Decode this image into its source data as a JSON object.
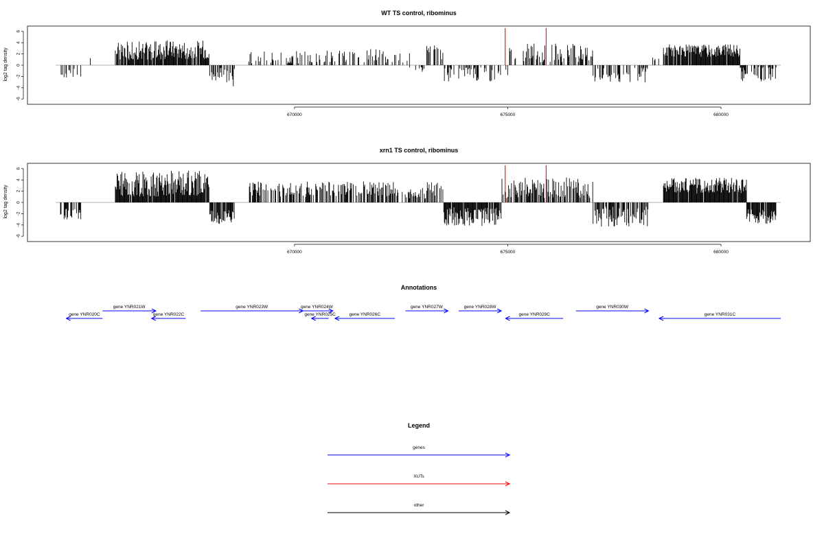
{
  "chart_data": [
    {
      "type": "bar",
      "title": "WT TS control, ribominus",
      "ylabel": "log2 tag density",
      "xlim": [
        664400,
        681400
      ],
      "ylim": [
        -6,
        6
      ],
      "yticks": [
        -6,
        -4,
        -2,
        0,
        2,
        4,
        6
      ],
      "xticks": [
        670000,
        675000,
        680000
      ],
      "xtick_labels": [
        "670000",
        "675000",
        "680000"
      ],
      "bar_color": "#000000",
      "marker_color": "#ff0000",
      "markers": [
        {
          "x": 674940,
          "value": 6.6
        },
        {
          "x": 675900,
          "value": 6.6
        }
      ],
      "segments": [
        {
          "start": 664500,
          "end": 665000,
          "mean": -1.5,
          "amp": 0.6,
          "density": 0.3
        },
        {
          "start": 665200,
          "end": 665300,
          "mean": 1.5,
          "amp": 0.3,
          "density": 0.3
        },
        {
          "start": 665800,
          "end": 667000,
          "mean": 2.6,
          "amp": 1.2,
          "density": 0.9
        },
        {
          "start": 667000,
          "end": 668000,
          "mean": 2.8,
          "amp": 1.2,
          "density": 0.9
        },
        {
          "start": 668000,
          "end": 668300,
          "mean": -1.8,
          "amp": 1.0,
          "density": 0.5
        },
        {
          "start": 668300,
          "end": 668600,
          "mean": -2.2,
          "amp": 1.2,
          "density": 0.4
        },
        {
          "start": 668900,
          "end": 670400,
          "mean": 1.5,
          "amp": 1.0,
          "density": 0.35
        },
        {
          "start": 670400,
          "end": 672700,
          "mean": 1.6,
          "amp": 0.9,
          "density": 0.3
        },
        {
          "start": 672700,
          "end": 673100,
          "mean": -0.8,
          "amp": 0.4,
          "density": 0.3
        },
        {
          "start": 673100,
          "end": 673500,
          "mean": 2.2,
          "amp": 1.0,
          "density": 0.5
        },
        {
          "start": 673500,
          "end": 675000,
          "mean": -1.5,
          "amp": 1.0,
          "density": 0.4
        },
        {
          "start": 675000,
          "end": 677000,
          "mean": 2.2,
          "amp": 1.2,
          "density": 0.4
        },
        {
          "start": 677000,
          "end": 678300,
          "mean": -1.8,
          "amp": 1.0,
          "density": 0.35
        },
        {
          "start": 678300,
          "end": 678650,
          "mean": 1.0,
          "amp": 0.3,
          "density": 0.2
        },
        {
          "start": 678650,
          "end": 680450,
          "mean": 2.6,
          "amp": 0.8,
          "density": 0.9
        },
        {
          "start": 680450,
          "end": 681300,
          "mean": -1.6,
          "amp": 1.0,
          "density": 0.55
        }
      ]
    },
    {
      "type": "bar",
      "title": "xrn1 TS control, ribominus",
      "ylabel": "log2 tag density",
      "xlim": [
        664400,
        681400
      ],
      "ylim": [
        -6,
        6
      ],
      "yticks": [
        -6,
        -4,
        -2,
        0,
        2,
        4,
        6
      ],
      "xticks": [
        670000,
        675000,
        680000
      ],
      "xtick_labels": [
        "670000",
        "675000",
        "680000"
      ],
      "bar_color": "#000000",
      "marker_color": "#ff0000",
      "markers": [
        {
          "x": 674940,
          "value": 6.6
        },
        {
          "x": 675900,
          "value": 6.6
        }
      ],
      "segments": [
        {
          "start": 664500,
          "end": 665000,
          "mean": -2.0,
          "amp": 0.8,
          "density": 0.5
        },
        {
          "start": 665800,
          "end": 667000,
          "mean": 3.2,
          "amp": 1.6,
          "density": 0.95
        },
        {
          "start": 667000,
          "end": 668000,
          "mean": 3.4,
          "amp": 1.6,
          "density": 0.95
        },
        {
          "start": 668000,
          "end": 668600,
          "mean": -2.5,
          "amp": 1.0,
          "density": 0.8
        },
        {
          "start": 668900,
          "end": 670400,
          "mean": 2.3,
          "amp": 1.0,
          "density": 0.55
        },
        {
          "start": 670400,
          "end": 672400,
          "mean": 2.5,
          "amp": 1.0,
          "density": 0.6
        },
        {
          "start": 672400,
          "end": 673100,
          "mean": 1.5,
          "amp": 0.8,
          "density": 0.4
        },
        {
          "start": 673100,
          "end": 673500,
          "mean": 2.5,
          "amp": 1.0,
          "density": 0.5
        },
        {
          "start": 673500,
          "end": 674850,
          "mean": -2.5,
          "amp": 1.2,
          "density": 0.95
        },
        {
          "start": 674850,
          "end": 677000,
          "mean": 2.6,
          "amp": 1.3,
          "density": 0.7
        },
        {
          "start": 677000,
          "end": 678300,
          "mean": -2.5,
          "amp": 1.3,
          "density": 0.75
        },
        {
          "start": 678650,
          "end": 680600,
          "mean": 3.0,
          "amp": 1.0,
          "density": 0.95
        },
        {
          "start": 680600,
          "end": 681300,
          "mean": -2.5,
          "amp": 1.0,
          "density": 0.9
        }
      ]
    }
  ],
  "annotations": {
    "title": "Annotations",
    "color": "#0000ff",
    "genes": [
      {
        "label": "gene YNR020C",
        "start": 664650,
        "end": 665500,
        "strand": "-",
        "row": 1
      },
      {
        "label": "gene YNR021W",
        "start": 665500,
        "end": 666750,
        "strand": "+",
        "row": 0
      },
      {
        "label": "gene YNR022C",
        "start": 666650,
        "end": 667450,
        "strand": "-",
        "row": 1
      },
      {
        "label": "gene YNR023W",
        "start": 667800,
        "end": 670200,
        "strand": "+",
        "row": 0
      },
      {
        "label": "gene YNR024W",
        "start": 670150,
        "end": 670900,
        "strand": "+",
        "row": 0
      },
      {
        "label": "gene YNR025C",
        "start": 670400,
        "end": 670800,
        "strand": "-",
        "row": 1
      },
      {
        "label": "gene YNR026C",
        "start": 670950,
        "end": 672350,
        "strand": "-",
        "row": 1
      },
      {
        "label": "gene YNR027W",
        "start": 672600,
        "end": 673600,
        "strand": "+",
        "row": 0
      },
      {
        "label": "gene YNR028W",
        "start": 673850,
        "end": 674850,
        "strand": "+",
        "row": 0
      },
      {
        "label": "gene YNR029C",
        "start": 674950,
        "end": 676300,
        "strand": "-",
        "row": 1
      },
      {
        "label": "gene YNR030W",
        "start": 676600,
        "end": 678300,
        "strand": "+",
        "row": 0
      },
      {
        "label": "gene YNR031C",
        "start": 678550,
        "end": 681400,
        "strand": "-",
        "row": 1
      }
    ]
  },
  "legend": {
    "title": "Legend",
    "items": [
      {
        "label": "genes",
        "color": "#0000ff"
      },
      {
        "label": "XUTs",
        "color": "#ff0000"
      },
      {
        "label": "other",
        "color": "#000000"
      }
    ]
  }
}
